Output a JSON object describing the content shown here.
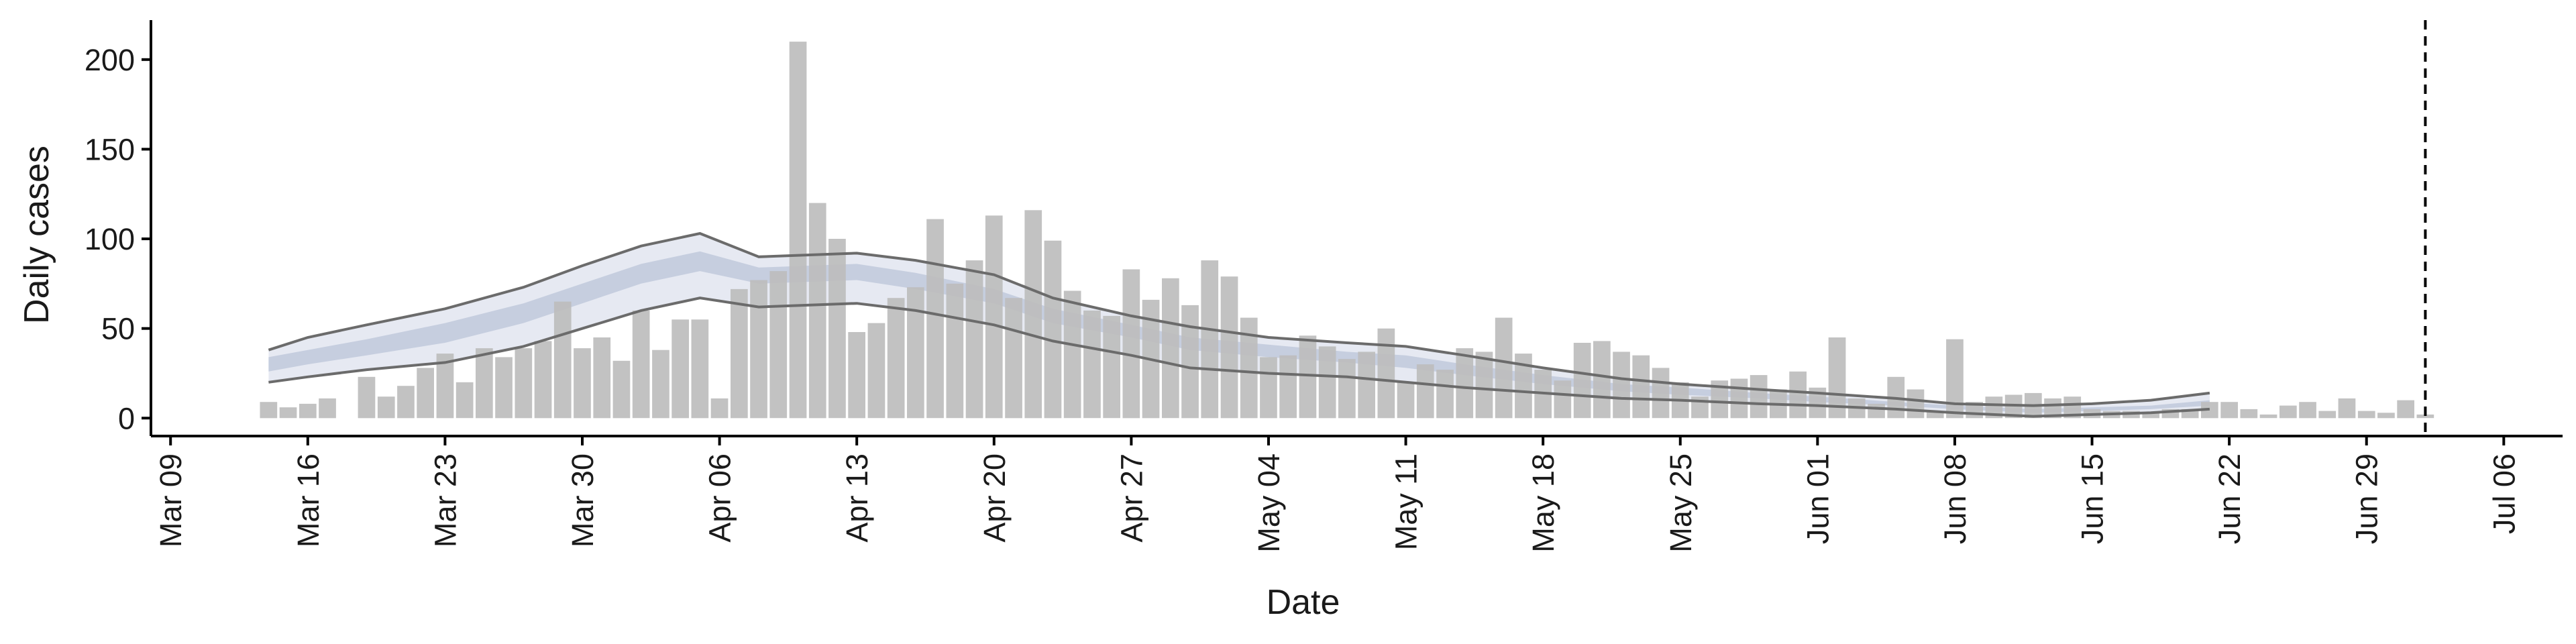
{
  "chart_data": {
    "type": "bar",
    "xlabel": "Date",
    "ylabel": "Daily cases",
    "xlim": [
      "2020-03-08",
      "2020-07-09"
    ],
    "ylim": [
      -10,
      222
    ],
    "x_ticks": [
      {
        "date": "2020-03-09",
        "label": "Mar 09"
      },
      {
        "date": "2020-03-16",
        "label": "Mar 16"
      },
      {
        "date": "2020-03-23",
        "label": "Mar 23"
      },
      {
        "date": "2020-03-30",
        "label": "Mar 30"
      },
      {
        "date": "2020-04-06",
        "label": "Apr 06"
      },
      {
        "date": "2020-04-13",
        "label": "Apr 13"
      },
      {
        "date": "2020-04-20",
        "label": "Apr 20"
      },
      {
        "date": "2020-04-27",
        "label": "Apr 27"
      },
      {
        "date": "2020-05-04",
        "label": "May 04"
      },
      {
        "date": "2020-05-11",
        "label": "May 11"
      },
      {
        "date": "2020-05-18",
        "label": "May 18"
      },
      {
        "date": "2020-05-25",
        "label": "May 25"
      },
      {
        "date": "2020-06-01",
        "label": "Jun 01"
      },
      {
        "date": "2020-06-08",
        "label": "Jun 08"
      },
      {
        "date": "2020-06-15",
        "label": "Jun 15"
      },
      {
        "date": "2020-06-22",
        "label": "Jun 22"
      },
      {
        "date": "2020-06-29",
        "label": "Jun 29"
      },
      {
        "date": "2020-07-06",
        "label": "Jul 06"
      }
    ],
    "y_ticks": [
      {
        "value": 0,
        "label": "0"
      },
      {
        "value": 50,
        "label": "50"
      },
      {
        "value": 100,
        "label": "100"
      },
      {
        "value": 150,
        "label": "150"
      },
      {
        "value": 200,
        "label": "200"
      }
    ],
    "bars": {
      "color": "#bdbdbd",
      "dates": [
        "2020-03-14",
        "2020-03-15",
        "2020-03-16",
        "2020-03-17",
        "2020-03-18",
        "2020-03-19",
        "2020-03-20",
        "2020-03-21",
        "2020-03-22",
        "2020-03-23",
        "2020-03-24",
        "2020-03-25",
        "2020-03-26",
        "2020-03-27",
        "2020-03-28",
        "2020-03-29",
        "2020-03-30",
        "2020-03-31",
        "2020-04-01",
        "2020-04-02",
        "2020-04-03",
        "2020-04-04",
        "2020-04-05",
        "2020-04-06",
        "2020-04-07",
        "2020-04-08",
        "2020-04-09",
        "2020-04-10",
        "2020-04-11",
        "2020-04-12",
        "2020-04-13",
        "2020-04-14",
        "2020-04-15",
        "2020-04-16",
        "2020-04-17",
        "2020-04-18",
        "2020-04-19",
        "2020-04-20",
        "2020-04-21",
        "2020-04-22",
        "2020-04-23",
        "2020-04-24",
        "2020-04-25",
        "2020-04-26",
        "2020-04-27",
        "2020-04-28",
        "2020-04-29",
        "2020-04-30",
        "2020-05-01",
        "2020-05-02",
        "2020-05-03",
        "2020-05-04",
        "2020-05-05",
        "2020-05-06",
        "2020-05-07",
        "2020-05-08",
        "2020-05-09",
        "2020-05-10",
        "2020-05-11",
        "2020-05-12",
        "2020-05-13",
        "2020-05-14",
        "2020-05-15",
        "2020-05-16",
        "2020-05-17",
        "2020-05-18",
        "2020-05-19",
        "2020-05-20",
        "2020-05-21",
        "2020-05-22",
        "2020-05-23",
        "2020-05-24",
        "2020-05-25",
        "2020-05-26",
        "2020-05-27",
        "2020-05-28",
        "2020-05-29",
        "2020-05-30",
        "2020-05-31",
        "2020-06-01",
        "2020-06-02",
        "2020-06-03",
        "2020-06-04",
        "2020-06-05",
        "2020-06-06",
        "2020-06-07",
        "2020-06-08",
        "2020-06-09",
        "2020-06-10",
        "2020-06-11",
        "2020-06-12",
        "2020-06-13",
        "2020-06-14",
        "2020-06-15",
        "2020-06-16",
        "2020-06-17",
        "2020-06-18",
        "2020-06-19",
        "2020-06-20",
        "2020-06-21",
        "2020-06-22",
        "2020-06-23",
        "2020-06-24",
        "2020-06-25",
        "2020-06-26",
        "2020-06-27",
        "2020-06-28",
        "2020-06-29",
        "2020-06-30",
        "2020-07-01",
        "2020-07-02"
      ],
      "values": [
        9,
        6,
        8,
        11,
        0,
        23,
        12,
        18,
        28,
        36,
        20,
        39,
        34,
        39,
        43,
        65,
        39,
        45,
        32,
        60,
        38,
        55,
        55,
        11,
        72,
        77,
        82,
        210,
        120,
        100,
        48,
        53,
        67,
        73,
        111,
        75,
        88,
        113,
        67,
        116,
        99,
        71,
        60,
        57,
        83,
        66,
        78,
        63,
        88,
        79,
        56,
        34,
        35,
        46,
        40,
        33,
        37,
        50,
        20,
        30,
        27,
        39,
        37,
        56,
        36,
        27,
        21,
        42,
        43,
        37,
        35,
        28,
        20,
        12,
        21,
        22,
        24,
        16,
        26,
        17,
        45,
        11,
        8,
        23,
        16,
        4,
        44,
        9,
        12,
        13,
        14,
        11,
        12,
        5,
        4,
        4,
        3,
        5,
        5,
        9,
        9,
        5,
        2,
        7,
        9,
        4,
        11,
        4,
        3,
        10,
        2
      ]
    },
    "bands": [
      {
        "color": "#e6e9f2",
        "dates": [
          "2020-03-14",
          "2020-03-16",
          "2020-03-19",
          "2020-03-23",
          "2020-03-27",
          "2020-03-30",
          "2020-04-02",
          "2020-04-05",
          "2020-04-08",
          "2020-04-13",
          "2020-04-16",
          "2020-04-20",
          "2020-04-23",
          "2020-04-27",
          "2020-04-30",
          "2020-05-04",
          "2020-05-08",
          "2020-05-11",
          "2020-05-14",
          "2020-05-18",
          "2020-05-22",
          "2020-05-25",
          "2020-05-29",
          "2020-06-01",
          "2020-06-05",
          "2020-06-08",
          "2020-06-12",
          "2020-06-15",
          "2020-06-18",
          "2020-06-21"
        ],
        "lower": [
          20,
          23,
          27,
          31,
          40,
          50,
          60,
          67,
          62,
          64,
          60,
          52,
          43,
          35,
          28,
          25,
          23,
          20,
          17,
          14,
          11,
          10,
          8,
          7,
          5,
          3,
          1,
          2,
          3,
          5
        ],
        "upper": [
          38,
          45,
          52,
          61,
          73,
          85,
          96,
          103,
          90,
          92,
          88,
          80,
          67,
          57,
          51,
          45,
          42,
          40,
          35,
          28,
          22,
          19,
          16,
          14,
          11,
          8,
          7,
          8,
          10,
          14
        ]
      },
      {
        "color": "#c6cedf",
        "dates": [
          "2020-03-14",
          "2020-03-16",
          "2020-03-19",
          "2020-03-23",
          "2020-03-27",
          "2020-03-30",
          "2020-04-02",
          "2020-04-05",
          "2020-04-08",
          "2020-04-13",
          "2020-04-16",
          "2020-04-20",
          "2020-04-23",
          "2020-04-27",
          "2020-04-30",
          "2020-05-04",
          "2020-05-08",
          "2020-05-11",
          "2020-05-14",
          "2020-05-18",
          "2020-05-22",
          "2020-05-25",
          "2020-05-29",
          "2020-06-01",
          "2020-06-05",
          "2020-06-08",
          "2020-06-12",
          "2020-06-15",
          "2020-06-18",
          "2020-06-21"
        ],
        "lower": [
          26,
          30,
          35,
          42,
          53,
          64,
          75,
          82,
          75,
          77,
          72,
          64,
          53,
          45,
          38,
          34,
          31,
          28,
          24,
          19,
          15,
          13,
          11,
          9,
          7,
          5,
          3,
          4,
          5,
          7
        ],
        "upper": [
          34,
          38,
          44,
          53,
          64,
          75,
          86,
          93,
          84,
          86,
          81,
          72,
          61,
          52,
          45,
          41,
          37,
          35,
          30,
          24,
          19,
          17,
          14,
          12,
          9,
          7,
          5,
          6,
          7,
          10
        ]
      }
    ],
    "lines": [
      {
        "color": "#6b6b6b",
        "dates": [
          "2020-03-14",
          "2020-03-16",
          "2020-03-19",
          "2020-03-23",
          "2020-03-27",
          "2020-03-30",
          "2020-04-02",
          "2020-04-05",
          "2020-04-08",
          "2020-04-13",
          "2020-04-16",
          "2020-04-20",
          "2020-04-23",
          "2020-04-27",
          "2020-04-30",
          "2020-05-04",
          "2020-05-08",
          "2020-05-11",
          "2020-05-14",
          "2020-05-18",
          "2020-05-22",
          "2020-05-25",
          "2020-05-29",
          "2020-06-01",
          "2020-06-05",
          "2020-06-08",
          "2020-06-12",
          "2020-06-15",
          "2020-06-18",
          "2020-06-21"
        ],
        "values": [
          38,
          45,
          52,
          61,
          73,
          85,
          96,
          103,
          90,
          92,
          88,
          80,
          67,
          57,
          51,
          45,
          42,
          40,
          35,
          28,
          22,
          19,
          16,
          14,
          11,
          8,
          7,
          8,
          10,
          14
        ]
      },
      {
        "color": "#6b6b6b",
        "dates": [
          "2020-03-14",
          "2020-03-16",
          "2020-03-19",
          "2020-03-23",
          "2020-03-27",
          "2020-03-30",
          "2020-04-02",
          "2020-04-05",
          "2020-04-08",
          "2020-04-13",
          "2020-04-16",
          "2020-04-20",
          "2020-04-23",
          "2020-04-27",
          "2020-04-30",
          "2020-05-04",
          "2020-05-08",
          "2020-05-11",
          "2020-05-14",
          "2020-05-18",
          "2020-05-22",
          "2020-05-25",
          "2020-05-29",
          "2020-06-01",
          "2020-06-05",
          "2020-06-08",
          "2020-06-12",
          "2020-06-15",
          "2020-06-18",
          "2020-06-21"
        ],
        "values": [
          20,
          23,
          27,
          31,
          40,
          50,
          60,
          67,
          62,
          64,
          60,
          52,
          43,
          35,
          28,
          25,
          23,
          20,
          17,
          14,
          11,
          10,
          8,
          7,
          5,
          3,
          1,
          2,
          3,
          5
        ]
      }
    ],
    "vline": {
      "date": "2020-07-02",
      "style": "dashed",
      "color": "#000000"
    },
    "grid": false,
    "legend": "none"
  }
}
